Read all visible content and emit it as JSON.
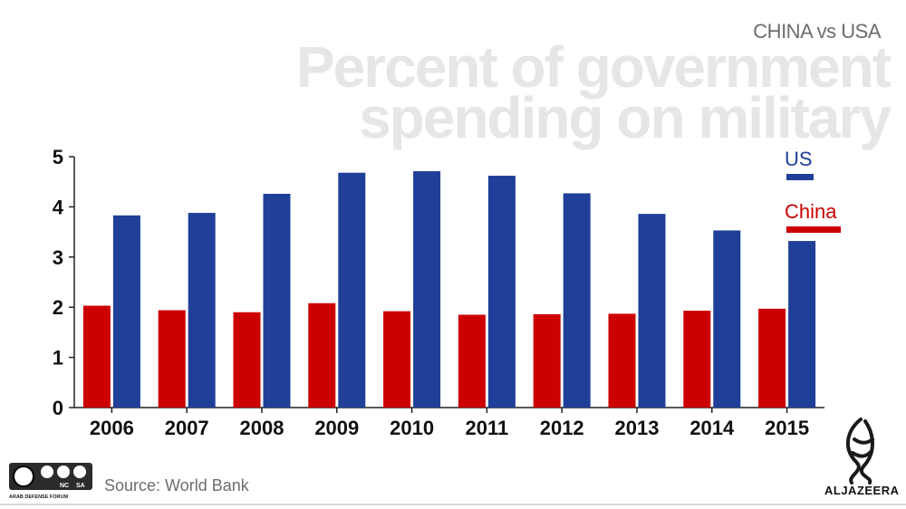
{
  "header": {
    "subtitle": "CHINA vs USA",
    "title_line1": "Percent of government",
    "title_line2": "spending on military"
  },
  "chart_data": {
    "type": "bar",
    "title": "Percent of government spending on military",
    "subtitle": "CHINA vs USA",
    "categories": [
      "2006",
      "2007",
      "2008",
      "2009",
      "2010",
      "2011",
      "2012",
      "2013",
      "2014",
      "2015"
    ],
    "series": [
      {
        "name": "China",
        "color": "#cc0000",
        "values": [
          2.03,
          1.94,
          1.9,
          2.08,
          1.92,
          1.85,
          1.86,
          1.87,
          1.93,
          1.97
        ]
      },
      {
        "name": "US",
        "color": "#1f3f99",
        "values": [
          3.83,
          3.88,
          4.26,
          4.68,
          4.71,
          4.62,
          4.27,
          3.86,
          3.53,
          3.32
        ]
      }
    ],
    "yticks": [
      0,
      1,
      2,
      3,
      4,
      5
    ],
    "ylim": [
      0,
      5
    ],
    "xlabel": "",
    "ylabel": "",
    "legend_position": "top-right"
  },
  "footer": {
    "source": "Source: World Bank",
    "logo_text": "ALJAZEERA",
    "badge_label_1": "NC",
    "badge_label_2": "SA",
    "badge_caption": "ARAB DEFENSE FORUM"
  }
}
